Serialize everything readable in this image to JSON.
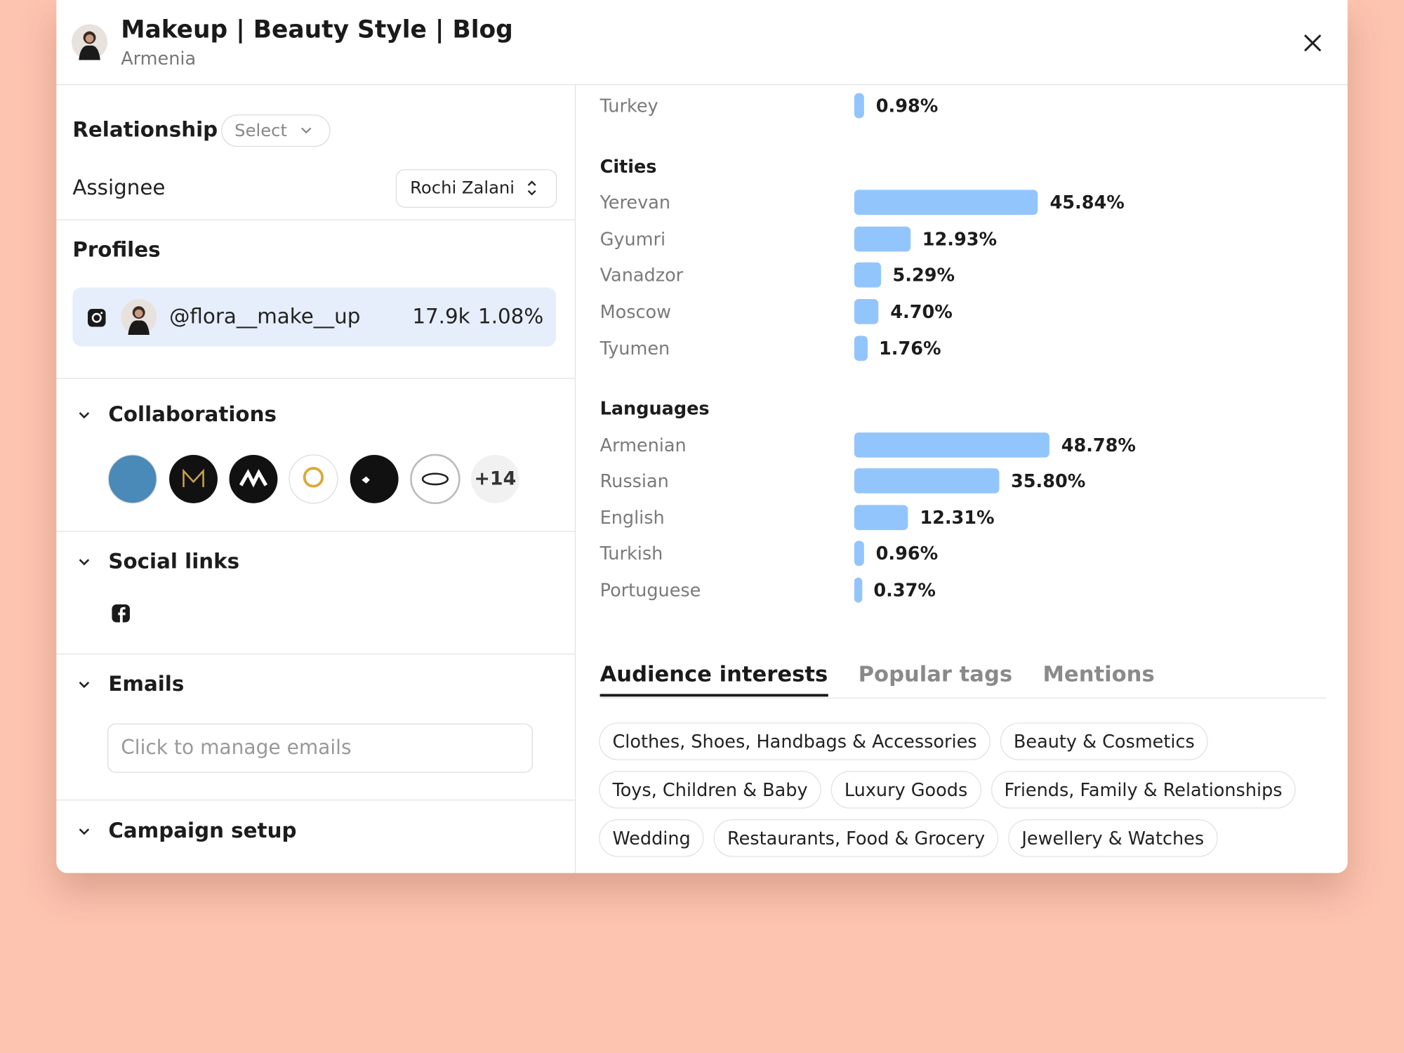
{
  "header": {
    "title": "Makeup | Beauty Style | Blog",
    "subtitle": "Armenia"
  },
  "left": {
    "relationship_label": "Relationship",
    "relationship_select": "Select",
    "assignee_label": "Assignee",
    "assignee_value": "Rochi Zalani",
    "profiles_title": "Profiles",
    "profile": {
      "handle": "@flora__make__up",
      "followers": "17.9k",
      "engagement": "1.08%"
    },
    "collaborations_title": "Collaborations",
    "collaborations_more": "+14",
    "social_links_title": "Social links",
    "emails_title": "Emails",
    "emails_placeholder": "Click to manage emails",
    "campaign_setup_title": "Campaign setup"
  },
  "countries": {
    "rows": [
      {
        "name": "Turkey",
        "share": {
          "value": 0.98,
          "label": "0.98%"
        }
      }
    ]
  },
  "cities": {
    "title": "Cities",
    "rows": [
      {
        "name": "Yerevan",
        "share": {
          "value": 45.84,
          "label": "45.84%"
        }
      },
      {
        "name": "Gyumri",
        "share": {
          "value": 12.93,
          "label": "12.93%"
        }
      },
      {
        "name": "Vanadzor",
        "share": {
          "value": 5.29,
          "label": "5.29%"
        }
      },
      {
        "name": "Moscow",
        "share": {
          "value": 4.7,
          "label": "4.70%"
        }
      },
      {
        "name": "Tyumen",
        "share": {
          "value": 1.76,
          "label": "1.76%"
        }
      }
    ]
  },
  "languages": {
    "title": "Languages",
    "rows": [
      {
        "name": "Armenian",
        "share": {
          "value": 48.78,
          "label": "48.78%"
        }
      },
      {
        "name": "Russian",
        "share": {
          "value": 35.8,
          "label": "35.80%"
        }
      },
      {
        "name": "English",
        "share": {
          "value": 12.31,
          "label": "12.31%"
        }
      },
      {
        "name": "Turkish",
        "share": {
          "value": 0.96,
          "label": "0.96%"
        }
      },
      {
        "name": "Portuguese",
        "share": {
          "value": 0.37,
          "label": "0.37%"
        }
      }
    ]
  },
  "tabs": [
    "Audience interests",
    "Popular tags",
    "Mentions"
  ],
  "interests": [
    "Clothes, Shoes, Handbags & Accessories",
    "Beauty & Cosmetics",
    "Toys, Children & Baby",
    "Luxury Goods",
    "Friends, Family & Relationships",
    "Wedding",
    "Restaurants, Food & Grocery",
    "Jewellery & Watches"
  ]
}
